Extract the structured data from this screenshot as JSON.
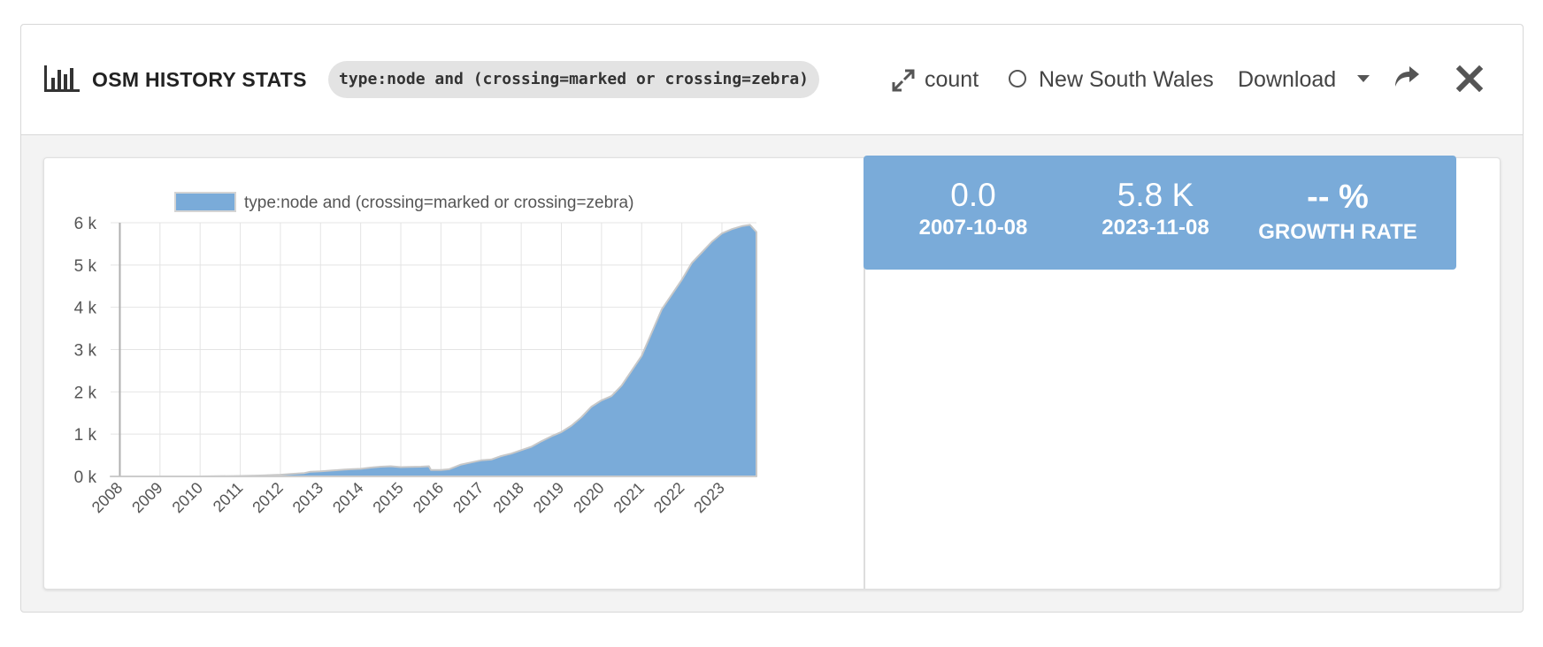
{
  "header": {
    "title": "OSM HISTORY STATS",
    "query": "type:node and (crossing=marked or crossing=zebra)",
    "count_label": "count",
    "region_label": "New South Wales",
    "download_label": "Download",
    "icons": {
      "app": "bar-chart-icon",
      "expand": "expand-icon",
      "region": "radio-circle-icon",
      "dropdown": "caret-down-icon",
      "share": "share-arrow-icon",
      "close": "close-icon"
    }
  },
  "stats": {
    "start_value": "0.0",
    "start_date": "2007-10-08",
    "end_value": "5.8 K",
    "end_date": "2023-11-08",
    "growth_value": "-- %",
    "growth_label": "GROWTH RATE",
    "color": "#7aabd9"
  },
  "chart_data": {
    "type": "area",
    "legend": [
      "type:node and (crossing=marked or crossing=zebra)"
    ],
    "legend_position": "top",
    "grid": true,
    "x_tick_labels": [
      "2008",
      "2009",
      "2010",
      "2011",
      "2012",
      "2013",
      "2014",
      "2015",
      "2016",
      "2017",
      "2018",
      "2019",
      "2020",
      "2021",
      "2022",
      "2023"
    ],
    "y_tick_labels": [
      "0 k",
      "1 k",
      "2 k",
      "3 k",
      "4 k",
      "5 k",
      "6 k"
    ],
    "xlim": [
      2007.77,
      2023.86
    ],
    "ylim": [
      0,
      6000
    ],
    "series": [
      {
        "name": "type:node and (crossing=marked or crossing=zebra)",
        "color": "#7aabd9",
        "x": [
          2007.77,
          2008.0,
          2009.0,
          2010.0,
          2011.0,
          2011.5,
          2012.0,
          2012.3,
          2012.6,
          2012.75,
          2013.0,
          2013.3,
          2013.6,
          2013.75,
          2014.0,
          2014.25,
          2014.5,
          2014.75,
          2015.0,
          2015.2,
          2015.5,
          2015.7,
          2015.75,
          2016.0,
          2016.2,
          2016.5,
          2016.75,
          2017.0,
          2017.25,
          2017.5,
          2017.75,
          2018.0,
          2018.25,
          2018.5,
          2018.75,
          2019.0,
          2019.25,
          2019.5,
          2019.75,
          2020.0,
          2020.25,
          2020.5,
          2020.75,
          2021.0,
          2021.25,
          2021.5,
          2021.75,
          2022.0,
          2022.25,
          2022.5,
          2022.75,
          2023.0,
          2023.25,
          2023.5,
          2023.7,
          2023.86
        ],
        "y": [
          0,
          0,
          0,
          0,
          10,
          20,
          40,
          60,
          80,
          110,
          120,
          140,
          160,
          170,
          180,
          210,
          230,
          240,
          220,
          225,
          230,
          240,
          150,
          150,
          170,
          280,
          330,
          380,
          400,
          480,
          540,
          620,
          700,
          830,
          950,
          1050,
          1200,
          1400,
          1650,
          1800,
          1900,
          2150,
          2500,
          2850,
          3400,
          3950,
          4300,
          4650,
          5050,
          5300,
          5550,
          5750,
          5850,
          5920,
          5950,
          5780
        ]
      }
    ]
  }
}
